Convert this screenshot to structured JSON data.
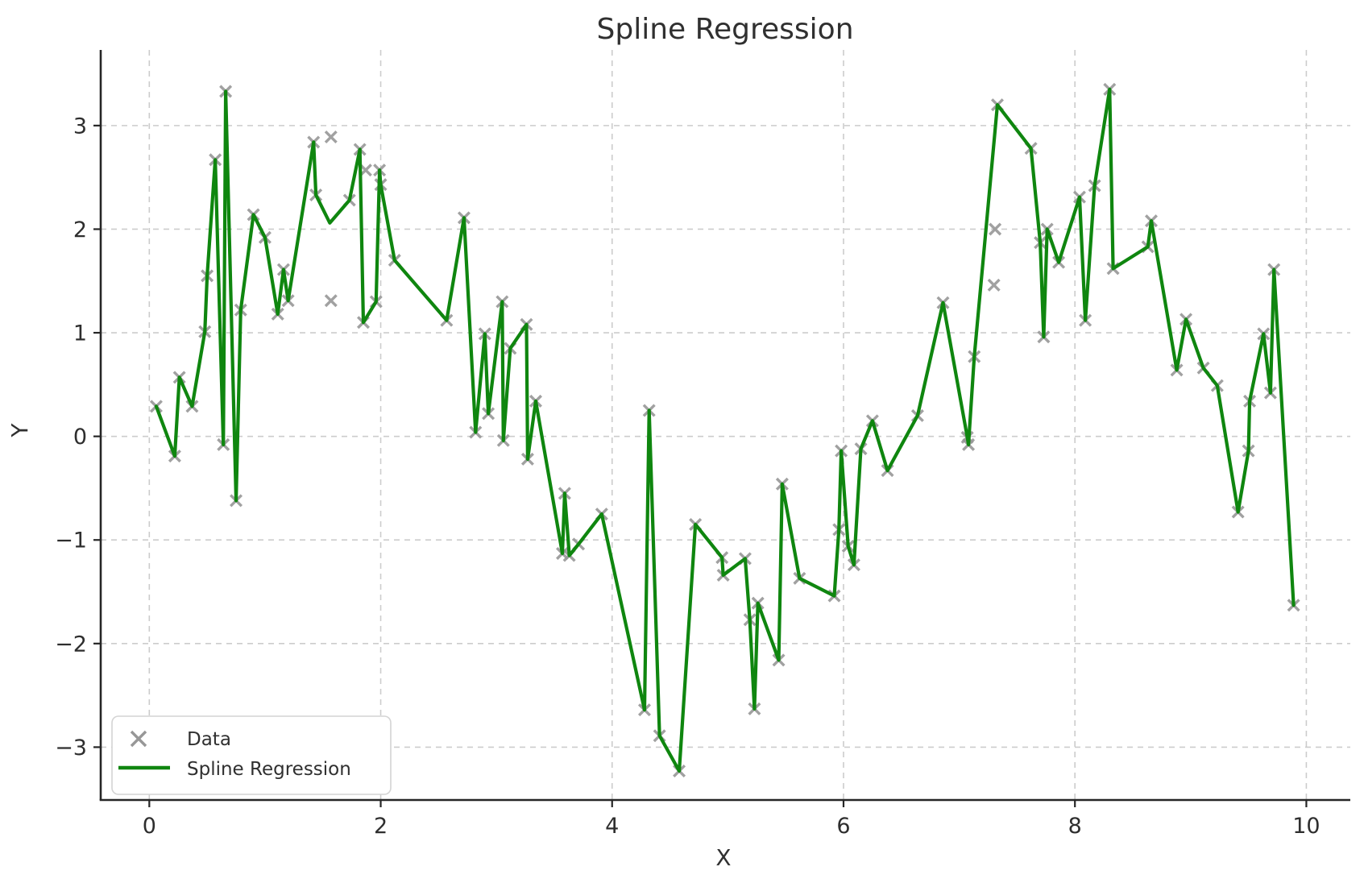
{
  "title": "Spline Regression",
  "xlabel": "X",
  "ylabel": "Y",
  "legend": {
    "position": "lower left",
    "entries": [
      {
        "label": "Data",
        "symbol": "x-marker"
      },
      {
        "label": "Spline Regression",
        "symbol": "line"
      }
    ]
  },
  "colors": {
    "line": "#0f860f",
    "marker": "#979797",
    "grid": "#cccccc",
    "text": "#2e2e2e",
    "spine": "#262626",
    "legend_border": "#d4d4d4",
    "background": "#ffffff"
  },
  "axes": {
    "x_ticks": [
      {
        "v": 0,
        "label": "0"
      },
      {
        "v": 2,
        "label": "2"
      },
      {
        "v": 4,
        "label": "4"
      },
      {
        "v": 6,
        "label": "6"
      },
      {
        "v": 8,
        "label": "8"
      },
      {
        "v": 10,
        "label": "10"
      }
    ],
    "y_ticks": [
      {
        "v": 3,
        "label": "3"
      },
      {
        "v": 2,
        "label": "2"
      },
      {
        "v": 1,
        "label": "1"
      },
      {
        "v": 0,
        "label": "0"
      },
      {
        "v": -1,
        "label": "−1"
      },
      {
        "v": -2,
        "label": "−2"
      },
      {
        "v": -3,
        "label": "−3"
      }
    ],
    "xlim": [
      -0.42,
      10.38
    ],
    "ylim": [
      -3.51,
      3.73
    ],
    "grid": "dashed"
  },
  "chart_data": {
    "type": "scatter",
    "title": "Spline Regression",
    "xlabel": "X",
    "ylabel": "Y",
    "xlim": [
      -0.42,
      10.38
    ],
    "ylim": [
      -3.51,
      3.73
    ],
    "grid": true,
    "legend_position": "lower left",
    "series": [
      {
        "name": "Data",
        "kind": "scatter",
        "marker": "x",
        "points": [
          [
            0.06,
            0.29
          ],
          [
            0.22,
            -0.19
          ],
          [
            0.26,
            0.57
          ],
          [
            0.37,
            0.29
          ],
          [
            0.48,
            1.01
          ],
          [
            0.5,
            1.55
          ],
          [
            0.57,
            2.67
          ],
          [
            0.64,
            -0.08
          ],
          [
            0.66,
            3.33
          ],
          [
            0.75,
            -0.62
          ],
          [
            0.79,
            1.22
          ],
          [
            0.9,
            2.14
          ],
          [
            1.0,
            1.92
          ],
          [
            1.11,
            1.18
          ],
          [
            1.16,
            1.61
          ],
          [
            1.2,
            1.31
          ],
          [
            1.42,
            2.84
          ],
          [
            1.44,
            2.33
          ],
          [
            1.57,
            2.89
          ],
          [
            1.57,
            1.31
          ],
          [
            1.73,
            2.28
          ],
          [
            1.82,
            2.77
          ],
          [
            1.85,
            1.1
          ],
          [
            1.87,
            2.57
          ],
          [
            1.96,
            1.3
          ],
          [
            1.99,
            2.57
          ],
          [
            2.0,
            2.43
          ],
          [
            2.12,
            1.7
          ],
          [
            2.57,
            1.12
          ],
          [
            2.72,
            2.11
          ],
          [
            2.82,
            0.04
          ],
          [
            2.9,
            0.99
          ],
          [
            2.93,
            0.22
          ],
          [
            3.05,
            1.3
          ],
          [
            3.06,
            -0.04
          ],
          [
            3.12,
            0.85
          ],
          [
            3.26,
            1.08
          ],
          [
            3.27,
            -0.22
          ],
          [
            3.34,
            0.34
          ],
          [
            3.57,
            -1.13
          ],
          [
            3.59,
            -0.55
          ],
          [
            3.63,
            -1.15
          ],
          [
            3.71,
            -1.04
          ],
          [
            3.91,
            -0.75
          ],
          [
            4.28,
            -2.64
          ],
          [
            4.32,
            0.25
          ],
          [
            4.41,
            -2.89
          ],
          [
            4.58,
            -3.23
          ],
          [
            4.72,
            -0.85
          ],
          [
            4.95,
            -1.17
          ],
          [
            4.96,
            -1.34
          ],
          [
            5.15,
            -1.18
          ],
          [
            5.19,
            -1.77
          ],
          [
            5.23,
            -2.63
          ],
          [
            5.26,
            -1.61
          ],
          [
            5.44,
            -2.16
          ],
          [
            5.47,
            -0.46
          ],
          [
            5.62,
            -1.37
          ],
          [
            5.92,
            -1.54
          ],
          [
            5.96,
            -0.9
          ],
          [
            5.98,
            -0.14
          ],
          [
            6.04,
            -1.06
          ],
          [
            6.09,
            -1.24
          ],
          [
            6.15,
            -0.12
          ],
          [
            6.25,
            0.15
          ],
          [
            6.38,
            -0.33
          ],
          [
            6.64,
            0.2
          ],
          [
            6.86,
            1.29
          ],
          [
            7.07,
            -0.01
          ],
          [
            7.08,
            -0.08
          ],
          [
            7.13,
            0.77
          ],
          [
            7.3,
            1.46
          ],
          [
            7.31,
            2.0
          ],
          [
            7.33,
            3.2
          ],
          [
            7.62,
            2.78
          ],
          [
            7.7,
            1.87
          ],
          [
            7.73,
            0.96
          ],
          [
            7.76,
            2.0
          ],
          [
            7.86,
            1.68
          ],
          [
            8.04,
            2.31
          ],
          [
            8.09,
            1.12
          ],
          [
            8.17,
            2.42
          ],
          [
            8.3,
            3.35
          ],
          [
            8.33,
            1.62
          ],
          [
            8.63,
            1.83
          ],
          [
            8.66,
            2.08
          ],
          [
            8.88,
            0.64
          ],
          [
            8.96,
            1.13
          ],
          [
            9.11,
            0.66
          ],
          [
            9.23,
            0.49
          ],
          [
            9.41,
            -0.73
          ],
          [
            9.5,
            -0.14
          ],
          [
            9.51,
            0.34
          ],
          [
            9.63,
            0.99
          ],
          [
            9.69,
            0.42
          ],
          [
            9.72,
            1.61
          ],
          [
            9.89,
            -1.63
          ]
        ]
      },
      {
        "name": "Spline Regression",
        "kind": "line",
        "points": [
          [
            0.06,
            0.29
          ],
          [
            0.22,
            -0.19
          ],
          [
            0.26,
            0.57
          ],
          [
            0.37,
            0.29
          ],
          [
            0.48,
            1.01
          ],
          [
            0.5,
            1.55
          ],
          [
            0.57,
            2.67
          ],
          [
            0.64,
            -0.08
          ],
          [
            0.66,
            3.33
          ],
          [
            0.75,
            -0.62
          ],
          [
            0.79,
            1.22
          ],
          [
            0.9,
            2.14
          ],
          [
            1.0,
            1.92
          ],
          [
            1.11,
            1.18
          ],
          [
            1.16,
            1.61
          ],
          [
            1.2,
            1.31
          ],
          [
            1.42,
            2.84
          ],
          [
            1.44,
            2.33
          ],
          [
            1.56,
            2.06
          ],
          [
            1.73,
            2.28
          ],
          [
            1.82,
            2.77
          ],
          [
            1.85,
            1.1
          ],
          [
            1.96,
            1.3
          ],
          [
            1.99,
            2.57
          ],
          [
            2.0,
            2.43
          ],
          [
            2.12,
            1.7
          ],
          [
            2.57,
            1.12
          ],
          [
            2.72,
            2.11
          ],
          [
            2.82,
            0.04
          ],
          [
            2.9,
            0.99
          ],
          [
            2.93,
            0.22
          ],
          [
            3.05,
            1.3
          ],
          [
            3.06,
            -0.04
          ],
          [
            3.12,
            0.85
          ],
          [
            3.26,
            1.08
          ],
          [
            3.27,
            -0.22
          ],
          [
            3.34,
            0.34
          ],
          [
            3.57,
            -1.13
          ],
          [
            3.59,
            -0.55
          ],
          [
            3.63,
            -1.15
          ],
          [
            3.71,
            -1.04
          ],
          [
            3.91,
            -0.75
          ],
          [
            4.28,
            -2.64
          ],
          [
            4.32,
            0.25
          ],
          [
            4.41,
            -2.89
          ],
          [
            4.58,
            -3.23
          ],
          [
            4.72,
            -0.85
          ],
          [
            4.95,
            -1.17
          ],
          [
            4.96,
            -1.34
          ],
          [
            5.15,
            -1.18
          ],
          [
            5.19,
            -1.77
          ],
          [
            5.23,
            -2.63
          ],
          [
            5.26,
            -1.61
          ],
          [
            5.44,
            -2.16
          ],
          [
            5.47,
            -0.46
          ],
          [
            5.62,
            -1.37
          ],
          [
            5.92,
            -1.54
          ],
          [
            5.96,
            -0.9
          ],
          [
            5.98,
            -0.14
          ],
          [
            6.04,
            -1.06
          ],
          [
            6.09,
            -1.24
          ],
          [
            6.15,
            -0.12
          ],
          [
            6.25,
            0.15
          ],
          [
            6.38,
            -0.33
          ],
          [
            6.64,
            0.2
          ],
          [
            6.86,
            1.29
          ],
          [
            7.07,
            -0.01
          ],
          [
            7.08,
            -0.08
          ],
          [
            7.13,
            0.77
          ],
          [
            7.33,
            3.2
          ],
          [
            7.62,
            2.78
          ],
          [
            7.7,
            1.87
          ],
          [
            7.73,
            0.96
          ],
          [
            7.76,
            2.0
          ],
          [
            7.86,
            1.68
          ],
          [
            8.04,
            2.31
          ],
          [
            8.09,
            1.12
          ],
          [
            8.17,
            2.42
          ],
          [
            8.3,
            3.35
          ],
          [
            8.33,
            1.62
          ],
          [
            8.63,
            1.83
          ],
          [
            8.66,
            2.08
          ],
          [
            8.88,
            0.64
          ],
          [
            8.96,
            1.13
          ],
          [
            9.11,
            0.66
          ],
          [
            9.23,
            0.49
          ],
          [
            9.41,
            -0.73
          ],
          [
            9.5,
            -0.14
          ],
          [
            9.51,
            0.34
          ],
          [
            9.63,
            0.99
          ],
          [
            9.69,
            0.42
          ],
          [
            9.72,
            1.61
          ],
          [
            9.89,
            -1.63
          ]
        ]
      }
    ]
  }
}
